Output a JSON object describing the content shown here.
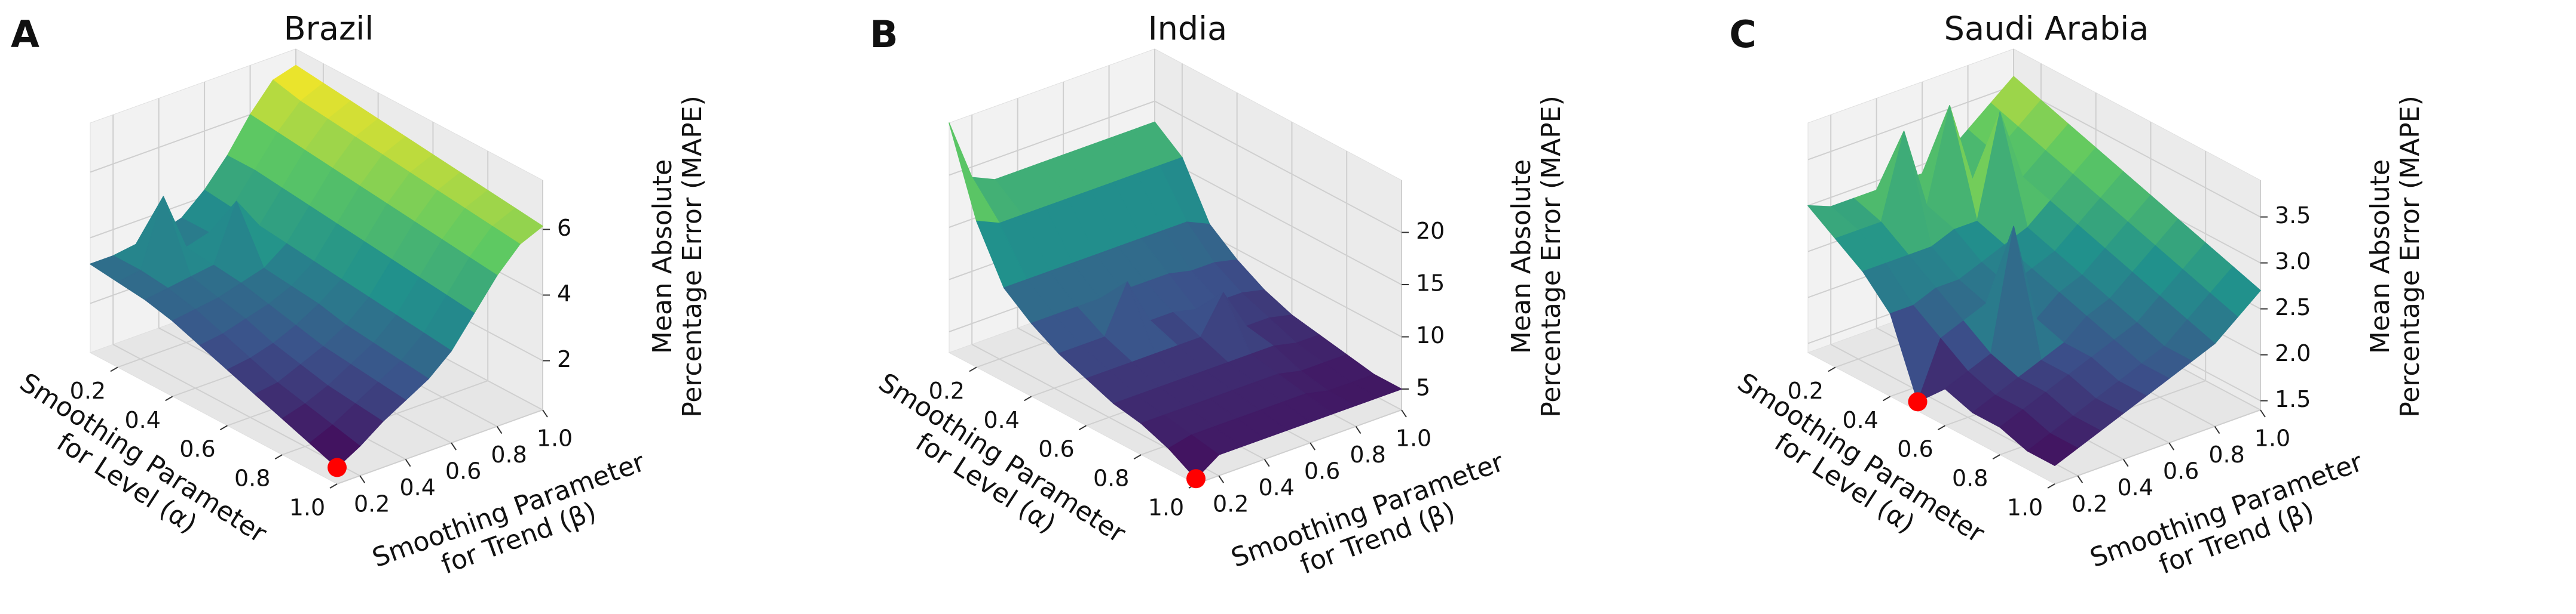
{
  "chart_data": [
    {
      "type": "surface3d",
      "label": "A",
      "title": "Brazil",
      "title_color": "#1f1f99",
      "colormap": "viridis",
      "minimum_color": "#ff0000",
      "grid": true,
      "xlabel": [
        "Smoothing Parameter",
        "for Level (α)"
      ],
      "ylabel": [
        "Smoothing Parameter",
        "for Trend (β)"
      ],
      "zlabel": [
        "Mean Absolute",
        "Percentage Error (MAPE)"
      ],
      "x": [
        0.1,
        0.2,
        0.3,
        0.4,
        0.5,
        0.6,
        0.7,
        0.8,
        0.9,
        1.0
      ],
      "y": [
        0.1,
        0.2,
        0.3,
        0.4,
        0.5,
        0.6,
        0.7,
        0.8,
        0.9,
        1.0
      ],
      "values": [
        [
          3.2,
          3.2,
          3.3,
          3.4,
          3.6,
          4.2,
          5.0,
          6.0,
          6.8,
          7.0
        ],
        [
          3.1,
          3.2,
          5.2,
          3.4,
          3.6,
          4.1,
          5.0,
          5.9,
          6.6,
          6.9
        ],
        [
          3.0,
          3.1,
          3.2,
          3.3,
          5.0,
          4.0,
          4.9,
          5.8,
          6.5,
          6.8
        ],
        [
          2.8,
          2.9,
          3.0,
          3.2,
          3.4,
          3.9,
          4.8,
          5.7,
          6.4,
          6.7
        ],
        [
          2.5,
          2.6,
          2.8,
          3.0,
          3.3,
          3.8,
          4.7,
          5.6,
          6.3,
          6.6
        ],
        [
          2.2,
          2.3,
          2.5,
          2.8,
          3.2,
          3.7,
          4.6,
          5.5,
          6.2,
          6.5
        ],
        [
          1.9,
          2.0,
          2.3,
          2.6,
          3.0,
          3.6,
          4.5,
          5.4,
          6.1,
          6.4
        ],
        [
          1.6,
          1.8,
          2.1,
          2.5,
          2.9,
          3.5,
          4.4,
          5.3,
          6.0,
          6.3
        ],
        [
          1.3,
          1.6,
          2.0,
          2.4,
          2.8,
          3.4,
          4.3,
          5.2,
          5.9,
          6.2
        ],
        [
          1.0,
          1.4,
          1.9,
          2.3,
          2.7,
          3.3,
          4.2,
          5.1,
          5.8,
          6.1
        ]
      ],
      "xlim": [
        0.1,
        1.0
      ],
      "ylim": [
        0.1,
        1.0
      ],
      "zlim": [
        0.5,
        7.5
      ],
      "xticks": [
        0.2,
        0.4,
        0.6,
        0.8,
        {
          "value": 1,
          "label": "1.0"
        }
      ],
      "yticks": [
        0.2,
        0.4,
        0.6,
        0.8,
        {
          "value": 1,
          "label": "1.0"
        }
      ],
      "zticks": [
        2,
        4,
        6
      ]
    },
    {
      "type": "surface3d",
      "label": "B",
      "title": "India",
      "title_color": "#1f1f99",
      "colormap": "viridis",
      "minimum_color": "#ff0000",
      "grid": true,
      "xlabel": [
        "Smoothing Parameter",
        "for Level (α)"
      ],
      "ylabel": [
        "Smoothing Parameter",
        "for Trend (β)"
      ],
      "zlabel": [
        "Mean Absolute",
        "Percentage Error (MAPE)"
      ],
      "x": [
        0.1,
        0.2,
        0.3,
        0.4,
        0.5,
        0.6,
        0.7,
        0.8,
        0.9,
        1.0
      ],
      "y": [
        0.1,
        0.2,
        0.3,
        0.4,
        0.5,
        0.6,
        0.7,
        0.8,
        0.9,
        1.0
      ],
      "values": [
        [
          25,
          19,
          18,
          18,
          18,
          18,
          18,
          18,
          18,
          18
        ],
        [
          17,
          16,
          16,
          16,
          16,
          16,
          16,
          16,
          16,
          16
        ],
        [
          12,
          12,
          12,
          12,
          12,
          12,
          12,
          12,
          12,
          11
        ],
        [
          10,
          10,
          10,
          10,
          10,
          10,
          10,
          9.5,
          9.5,
          9
        ],
        [
          8.5,
          8.5,
          8.5,
          13,
          8.5,
          8.5,
          8,
          8,
          8,
          7.5
        ],
        [
          7.5,
          7.5,
          7.5,
          7.5,
          7.5,
          7.5,
          11,
          7,
          7,
          6.5
        ],
        [
          6.5,
          6.5,
          6.5,
          6.5,
          6.5,
          6.5,
          6.5,
          6.5,
          6,
          6
        ],
        [
          6,
          6,
          6,
          6,
          6,
          6,
          6,
          5.5,
          5.5,
          5.5
        ],
        [
          5,
          5.5,
          5.5,
          5.5,
          5.5,
          5.5,
          5.5,
          5,
          5,
          5
        ],
        [
          3.5,
          5,
          5,
          5,
          5,
          5,
          5,
          5,
          5,
          5
        ]
      ],
      "xlim": [
        0.1,
        1.0
      ],
      "ylim": [
        0.1,
        1.0
      ],
      "zlim": [
        3,
        25
      ],
      "xticks": [
        0.2,
        0.4,
        0.6,
        0.8,
        {
          "value": 1,
          "label": "1.0"
        }
      ],
      "yticks": [
        0.2,
        0.4,
        0.6,
        0.8,
        {
          "value": 1,
          "label": "1.0"
        }
      ],
      "zticks": [
        5,
        10,
        15,
        20
      ]
    },
    {
      "type": "surface3d",
      "label": "C",
      "title": "Saudi Arabia",
      "title_color": "#1f1f99",
      "colormap": "viridis",
      "minimum_color": "#ff0000",
      "grid": true,
      "xlabel": [
        "Smoothing Parameter",
        "for Level (α)"
      ],
      "ylabel": [
        "Smoothing Parameter",
        "for Trend (β)"
      ],
      "zlabel": [
        "Mean Absolute",
        "Percentage Error (MAPE)"
      ],
      "x": [
        0.1,
        0.2,
        0.3,
        0.4,
        0.5,
        0.6,
        0.7,
        0.8,
        0.9,
        1.0
      ],
      "y": [
        0.1,
        0.2,
        0.3,
        0.4,
        0.5,
        0.6,
        0.7,
        0.8,
        0.9,
        1.0
      ],
      "values": [
        [
          3.0,
          2.9,
          2.9,
          2.9,
          2.9,
          2.9,
          3.0,
          3.2,
          3.4,
          3.6
        ],
        [
          2.8,
          2.8,
          2.8,
          3.7,
          2.8,
          3.8,
          2.9,
          3.1,
          3.3,
          3.5
        ],
        [
          2.6,
          2.6,
          2.6,
          2.6,
          2.7,
          2.7,
          3.8,
          3.0,
          3.2,
          3.4
        ],
        [
          2.3,
          2.3,
          2.4,
          2.4,
          2.5,
          2.6,
          2.7,
          2.9,
          3.1,
          3.3
        ],
        [
          1.5,
          2.1,
          2.2,
          2.3,
          2.4,
          2.5,
          2.6,
          2.8,
          3.0,
          3.2
        ],
        [
          1.8,
          1.9,
          2.0,
          3.3,
          2.2,
          2.4,
          2.5,
          2.7,
          2.9,
          3.1
        ],
        [
          1.7,
          1.8,
          1.9,
          2.0,
          2.1,
          2.3,
          2.4,
          2.6,
          2.8,
          3.0
        ],
        [
          1.7,
          1.8,
          1.9,
          2.0,
          2.1,
          2.2,
          2.3,
          2.5,
          2.7,
          2.9
        ],
        [
          1.6,
          1.7,
          1.8,
          1.9,
          2.0,
          2.1,
          2.2,
          2.4,
          2.6,
          2.8
        ],
        [
          1.6,
          1.7,
          1.8,
          1.9,
          2.0,
          2.1,
          2.2,
          2.3,
          2.5,
          2.7
        ]
      ],
      "xlim": [
        0.1,
        1.0
      ],
      "ylim": [
        0.1,
        1.0
      ],
      "zlim": [
        1.4,
        3.9
      ],
      "xticks": [
        0.2,
        0.4,
        0.6,
        0.8,
        {
          "value": 1,
          "label": "1.0"
        }
      ],
      "yticks": [
        0.2,
        0.4,
        0.6,
        0.8,
        {
          "value": 1,
          "label": "1.0"
        }
      ],
      "zticks": [
        1.5,
        {
          "value": 2,
          "label": "2.0"
        },
        2.5,
        {
          "value": 3,
          "label": "3.0"
        },
        3.5
      ]
    }
  ]
}
